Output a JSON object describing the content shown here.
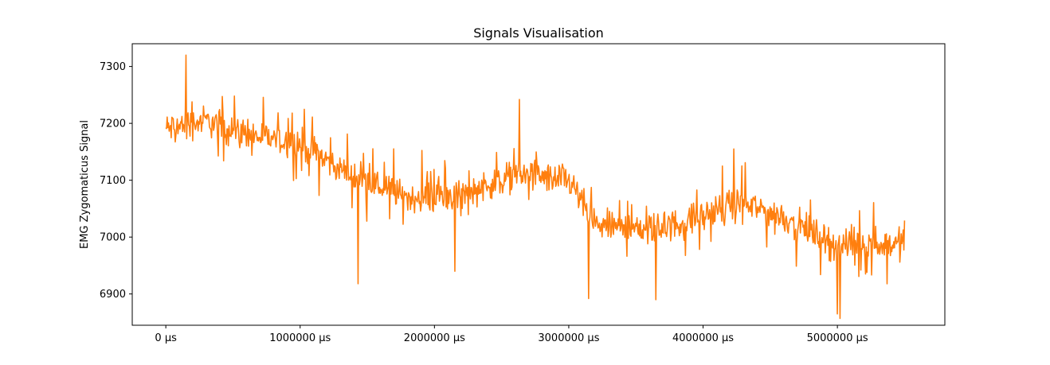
{
  "chart_data": {
    "type": "line",
    "title": "Signals Visualisation",
    "xlabel": "",
    "ylabel": "EMG Zygomaticus Signal",
    "xlim": [
      -250000,
      5800000
    ],
    "ylim": [
      6845,
      7340
    ],
    "x_ticks": [
      {
        "value": 0,
        "label": "0 μs"
      },
      {
        "value": 1000000,
        "label": "1000000 μs"
      },
      {
        "value": 2000000,
        "label": "2000000 μs"
      },
      {
        "value": 3000000,
        "label": "3000000 μs"
      },
      {
        "value": 4000000,
        "label": "4000000 μs"
      },
      {
        "value": 5000000,
        "label": "5000000 μs"
      }
    ],
    "y_ticks": [
      {
        "value": 6900,
        "label": "6900"
      },
      {
        "value": 7000,
        "label": "7000"
      },
      {
        "value": 7100,
        "label": "7100"
      },
      {
        "value": 7200,
        "label": "7200"
      },
      {
        "value": 7300,
        "label": "7300"
      }
    ],
    "grid": false,
    "legend": "none",
    "series": [
      {
        "color": "#ff7f0e",
        "x_start": 0,
        "x_end": 5500000,
        "trend": [
          {
            "x": 0,
            "y": 7190
          },
          {
            "x": 300000,
            "y": 7205
          },
          {
            "x": 600000,
            "y": 7180
          },
          {
            "x": 1000000,
            "y": 7165
          },
          {
            "x": 1400000,
            "y": 7105
          },
          {
            "x": 1800000,
            "y": 7070
          },
          {
            "x": 2200000,
            "y": 7075
          },
          {
            "x": 2600000,
            "y": 7110
          },
          {
            "x": 3000000,
            "y": 7100
          },
          {
            "x": 3200000,
            "y": 7020
          },
          {
            "x": 3700000,
            "y": 7015
          },
          {
            "x": 4300000,
            "y": 7060
          },
          {
            "x": 4600000,
            "y": 7035
          },
          {
            "x": 5000000,
            "y": 6985
          },
          {
            "x": 5500000,
            "y": 6990
          }
        ],
        "noise_amplitude": 50,
        "extremes": [
          {
            "x": 150000,
            "y": 7320
          },
          {
            "x": 1430000,
            "y": 6918
          },
          {
            "x": 2150000,
            "y": 6940
          },
          {
            "x": 2630000,
            "y": 7242
          },
          {
            "x": 3150000,
            "y": 6892
          },
          {
            "x": 3650000,
            "y": 6890
          },
          {
            "x": 4230000,
            "y": 7155
          },
          {
            "x": 5000000,
            "y": 6865
          },
          {
            "x": 5020000,
            "y": 6857
          }
        ]
      }
    ]
  }
}
